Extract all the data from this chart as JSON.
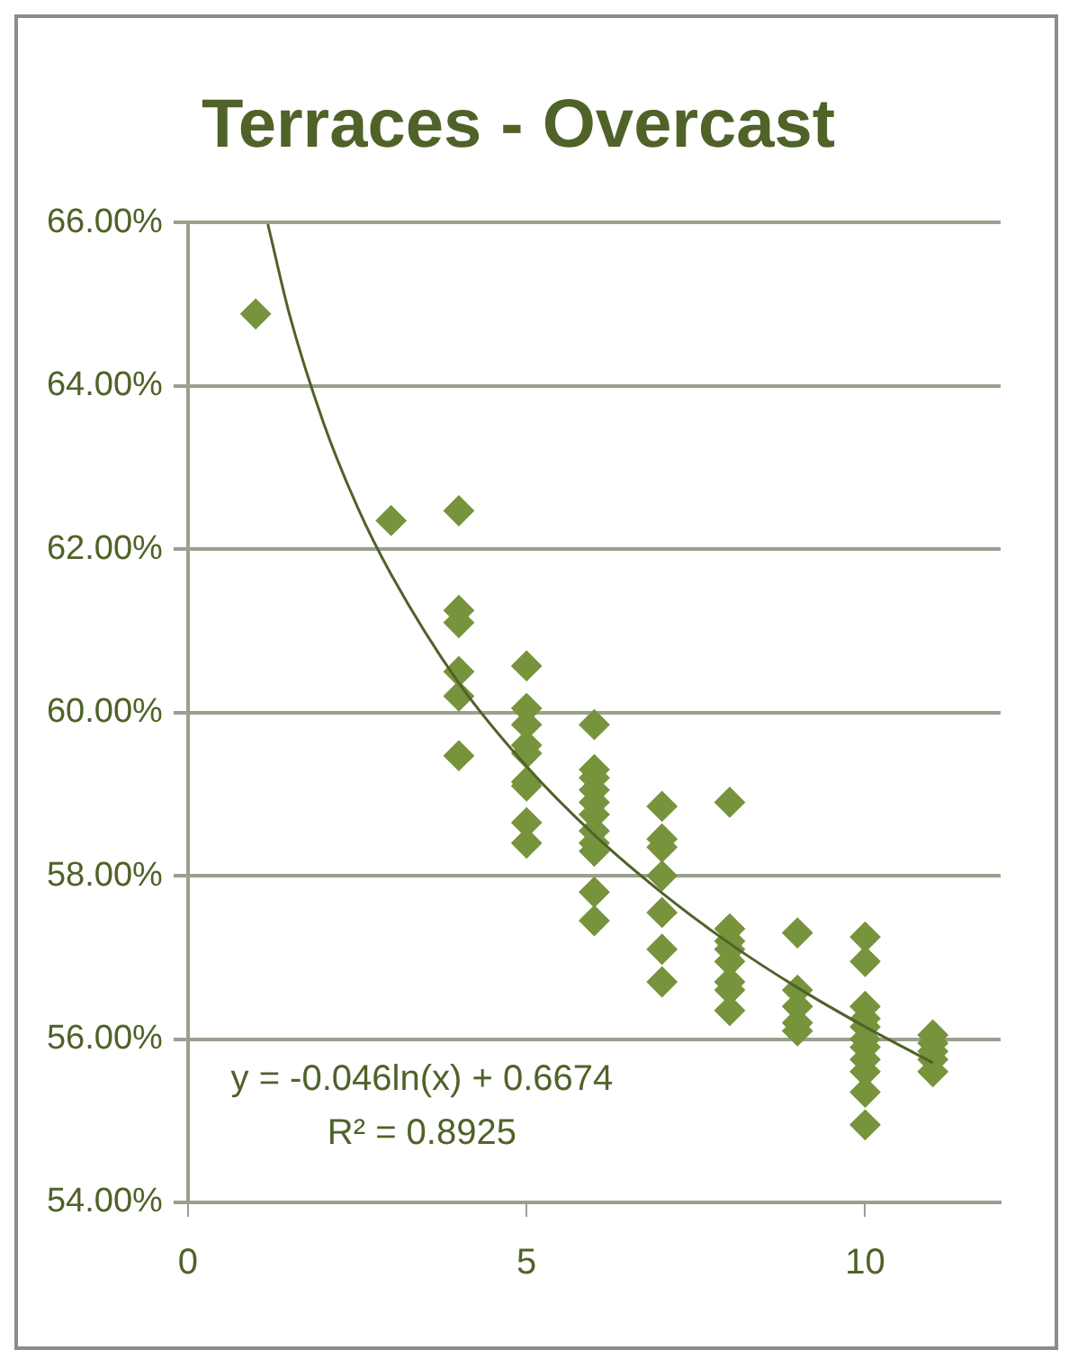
{
  "chart_data": {
    "type": "scatter",
    "title": "Terraces - Overcast",
    "series": [
      {
        "type": "scatter",
        "color": "#77933c",
        "marker": "diamond",
        "x": [
          1,
          3,
          4,
          4,
          4,
          4,
          4,
          4,
          5,
          5,
          5,
          5,
          5,
          5,
          5,
          5,
          5,
          6,
          6,
          6,
          6,
          6,
          6,
          6,
          6,
          6,
          6,
          6,
          7,
          7,
          7,
          7,
          7,
          7,
          7,
          8,
          8,
          8,
          8,
          8,
          8,
          8,
          8,
          9,
          9,
          9,
          9,
          9,
          10,
          10,
          10,
          10,
          10,
          10,
          10,
          10,
          10,
          10,
          10,
          11,
          11,
          11,
          11,
          11
        ],
        "values": [
          64.88,
          62.35,
          62.47,
          61.25,
          61.1,
          60.5,
          60.2,
          59.47,
          60.57,
          60.05,
          59.85,
          59.6,
          59.5,
          59.15,
          59.1,
          58.65,
          58.4,
          59.85,
          59.3,
          59.2,
          59.05,
          58.9,
          58.75,
          58.55,
          58.4,
          58.3,
          57.8,
          57.45,
          58.85,
          58.45,
          58.35,
          58.0,
          57.55,
          57.1,
          56.7,
          58.9,
          57.35,
          57.2,
          57.1,
          56.95,
          56.7,
          56.6,
          56.35,
          57.3,
          56.6,
          56.4,
          56.2,
          56.1,
          57.25,
          56.95,
          56.4,
          56.25,
          56.15,
          56.0,
          55.9,
          55.75,
          55.6,
          55.35,
          54.95,
          56.05,
          55.95,
          55.85,
          55.75,
          55.6
        ]
      },
      {
        "type": "line",
        "color": "#4f6228",
        "marker": "none",
        "line_style": "solid",
        "x": [
          1.18,
          1.5,
          2,
          2.5,
          3,
          4,
          5,
          6,
          7,
          8,
          9,
          10,
          11
        ],
        "values": [
          65.98,
          64.87,
          63.55,
          62.52,
          61.69,
          60.36,
          59.34,
          58.5,
          57.79,
          57.17,
          56.63,
          56.15,
          55.71
        ]
      }
    ],
    "xlim": [
      0,
      12
    ],
    "xticks": [
      0,
      5,
      10
    ],
    "ylim": [
      54,
      66
    ],
    "yticks": [
      {
        "value": 54,
        "label": "54.00%"
      },
      {
        "value": 56,
        "label": "56.00%"
      },
      {
        "value": 58,
        "label": "58.00%"
      },
      {
        "value": 60,
        "label": "60.00%"
      },
      {
        "value": 62,
        "label": "62.00%"
      },
      {
        "value": 64,
        "label": "64.00%"
      },
      {
        "value": 66,
        "label": "66.00%"
      }
    ],
    "grid": "y",
    "legend": false,
    "annotations": [
      "y = -0.046ln(x) + 0.6674",
      "R² = 0.8925"
    ]
  }
}
